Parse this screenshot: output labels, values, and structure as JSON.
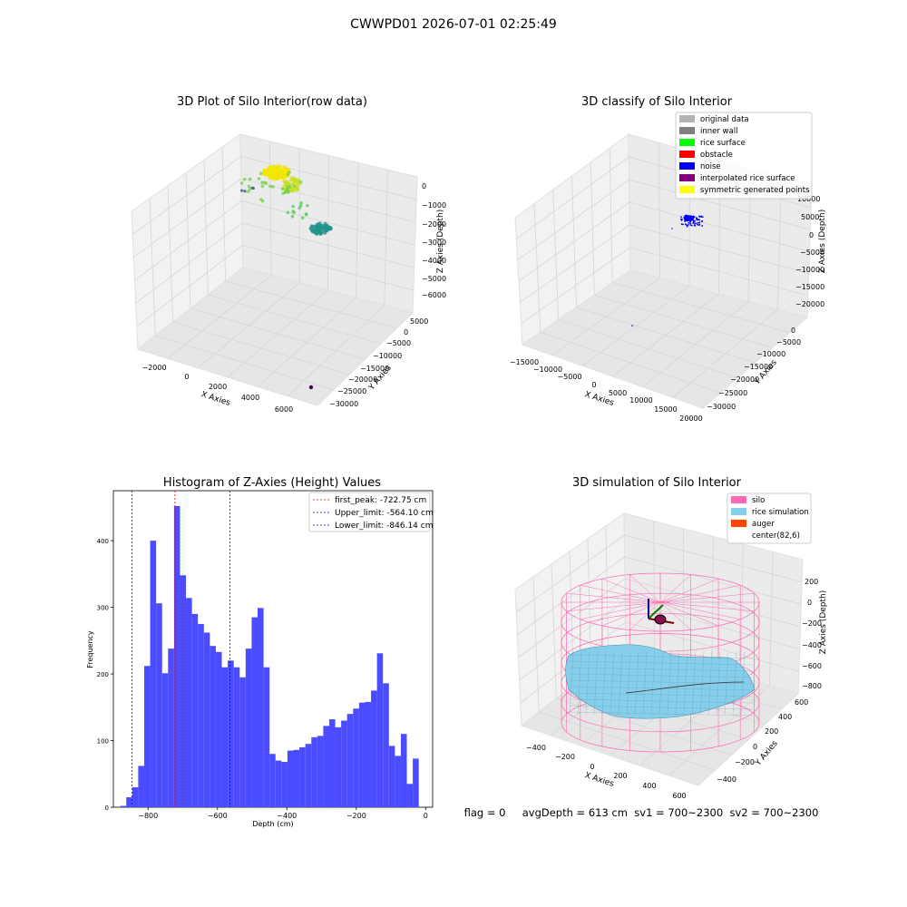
{
  "figure": {
    "suptitle": "CWWPD01 2026-07-01 02:25:49",
    "status_line": "flag = 0     avgDepth = 613 cm  sv1 = 700~2300  sv2 = 700~2300"
  },
  "colors": {
    "hist_bar": "#4b4bff",
    "first_peak": "#ff0000",
    "limit_lines": "#0000ff",
    "silo_wire": "#ff69b4",
    "rice_sim": "#87ceeb",
    "auger": "#ff4500",
    "pane_bg": "#f2f2f2",
    "grid": "#d9d9d9"
  },
  "chart_data": [
    {
      "type": "scatter",
      "title": "3D Plot of Silo Interior(row data)",
      "xlabel": "X Axies",
      "ylabel": "Y Axies",
      "zlabel": "Z Axies (Depth)",
      "x_ticks": [
        "−2000",
        "0",
        "2000",
        "4000",
        "6000"
      ],
      "y_ticks": [
        "5000",
        "0",
        "−5000",
        "−10000",
        "−15000",
        "−20000",
        "−25000",
        "−30000"
      ],
      "z_ticks": [
        "0",
        "−1000",
        "−2000",
        "−3000",
        "−4000",
        "−5000",
        "−6000"
      ],
      "clusters": [
        {
          "label": "top cluster (yellow)",
          "x": 500,
          "y": 0,
          "z": -500,
          "color": "#f2e600"
        },
        {
          "label": "slope (green)",
          "x": 1300,
          "y": -2000,
          "z": -1000,
          "color": "#7ad151"
        },
        {
          "label": "lower cluster (teal)",
          "x": 3000,
          "y": -5000,
          "z": -2400,
          "color": "#21918c"
        },
        {
          "label": "outlier",
          "x": 6500,
          "y": -30000,
          "z": -6000,
          "color": "#440154"
        }
      ]
    },
    {
      "type": "scatter",
      "title": "3D classify of Silo Interior",
      "xlabel": "X Axies",
      "ylabel": "Y Axies",
      "zlabel": "Z Axies (Depth)",
      "x_ticks": [
        "−15000",
        "−10000",
        "−5000",
        "0",
        "5000",
        "10000",
        "15000",
        "20000"
      ],
      "y_ticks": [
        "0",
        "−5000",
        "−10000",
        "−15000",
        "−20000",
        "−25000",
        "−30000"
      ],
      "z_ticks": [
        "10000",
        "5000",
        "0",
        "−5000",
        "−10000",
        "−15000",
        "−20000"
      ],
      "legend": [
        {
          "label": "original data",
          "color": "#b3b3b3"
        },
        {
          "label": "inner wall",
          "color": "#808080"
        },
        {
          "label": "rice surface",
          "color": "#00ff00"
        },
        {
          "label": "obstacle",
          "color": "#ff0000"
        },
        {
          "label": "noise",
          "color": "#0000ff"
        },
        {
          "label": "interpolated rice surface",
          "color": "#800080"
        },
        {
          "label": "symmetric generated points",
          "color": "#ffff00"
        }
      ]
    },
    {
      "type": "bar",
      "title": "Histogram of Z-Axies (Height) Values",
      "xlabel": "Depth (cm)",
      "ylabel": "Frequency",
      "xlim": [
        -900,
        20
      ],
      "ylim": [
        0,
        475
      ],
      "x_ticks": [
        -800,
        -600,
        -400,
        -200,
        0
      ],
      "y_ticks": [
        0,
        100,
        200,
        300,
        400
      ],
      "bin_start": -880,
      "bin_width": 17.2,
      "values": [
        2,
        15,
        30,
        62,
        212,
        400,
        306,
        201,
        238,
        452,
        348,
        314,
        290,
        275,
        262,
        242,
        233,
        210,
        220,
        210,
        195,
        238,
        285,
        299,
        210,
        80,
        70,
        68,
        85,
        86,
        90,
        95,
        105,
        107,
        122,
        132,
        120,
        130,
        140,
        148,
        157,
        158,
        175,
        231,
        186,
        92,
        77,
        110,
        35,
        73
      ],
      "vlines": [
        {
          "name": "first_peak",
          "label": "first_peak: -722.75 cm",
          "x": -722.75,
          "color": "#ff0000"
        },
        {
          "name": "upper_limit",
          "label": "Upper_limit: -564.10 cm",
          "x": -564.1,
          "color": "#0000ff"
        },
        {
          "name": "lower_limit",
          "label": "Lower_limit: -846.14 cm",
          "x": -846.14,
          "color": "#0000ff"
        }
      ]
    },
    {
      "type": "other",
      "title": "3D simulation of Silo Interior",
      "xlabel": "X Axies",
      "ylabel": "Y Axies",
      "zlabel": "Z Axies (Depth)",
      "x_ticks": [
        "−400",
        "−200",
        "0",
        "200",
        "400",
        "600"
      ],
      "y_ticks": [
        "600",
        "400",
        "200",
        "0",
        "−200",
        "−400"
      ],
      "z_ticks": [
        "200",
        "0",
        "−200",
        "−400",
        "−600",
        "−800"
      ],
      "legend": [
        {
          "label": "silo",
          "color": "#ff69b4"
        },
        {
          "label": "rice simulation",
          "color": "#87ceeb"
        },
        {
          "label": "auger",
          "color": "#ff4500"
        },
        {
          "label": "center(82,6)",
          "color": ""
        }
      ]
    }
  ]
}
